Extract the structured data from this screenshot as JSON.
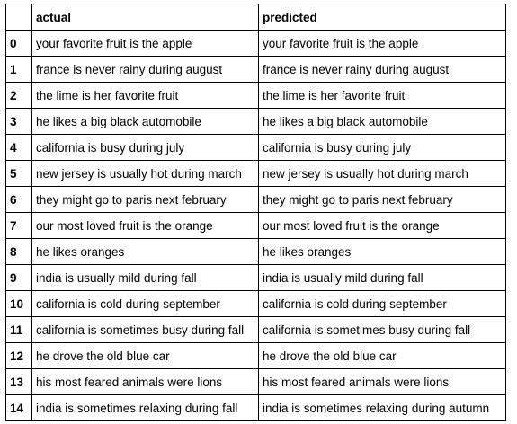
{
  "table": {
    "columns": [
      "",
      "actual",
      "predicted"
    ],
    "rows": [
      {
        "index": "0",
        "actual": "your favorite fruit is the apple",
        "predicted": "your favorite fruit is the apple"
      },
      {
        "index": "1",
        "actual": "france is never rainy during august",
        "predicted": "france is never rainy during august"
      },
      {
        "index": "2",
        "actual": "the lime is her favorite fruit",
        "predicted": "the lime is her favorite fruit"
      },
      {
        "index": "3",
        "actual": "he likes a big black automobile",
        "predicted": "he likes a big black automobile"
      },
      {
        "index": "4",
        "actual": "california is busy during july",
        "predicted": "california is busy during july"
      },
      {
        "index": "5",
        "actual": "new jersey is usually hot during march",
        "predicted": "new jersey is usually hot during march"
      },
      {
        "index": "6",
        "actual": "they might go to paris next february",
        "predicted": "they might go to paris next february"
      },
      {
        "index": "7",
        "actual": "our most loved fruit is the orange",
        "predicted": "our most loved fruit is the orange"
      },
      {
        "index": "8",
        "actual": "he likes oranges",
        "predicted": "he likes oranges"
      },
      {
        "index": "9",
        "actual": "india is usually mild during fall",
        "predicted": "india is usually mild during fall"
      },
      {
        "index": "10",
        "actual": "california is cold during september",
        "predicted": "california is cold during september"
      },
      {
        "index": "11",
        "actual": "california is sometimes busy during fall",
        "predicted": "california is sometimes busy during fall"
      },
      {
        "index": "12",
        "actual": "he drove the old blue car",
        "predicted": "he drove the old blue car"
      },
      {
        "index": "13",
        "actual": "his most feared animals were lions",
        "predicted": "his most feared animals were lions"
      },
      {
        "index": "14",
        "actual": "india is sometimes relaxing during fall",
        "predicted": "india is sometimes relaxing during autumn"
      }
    ]
  }
}
